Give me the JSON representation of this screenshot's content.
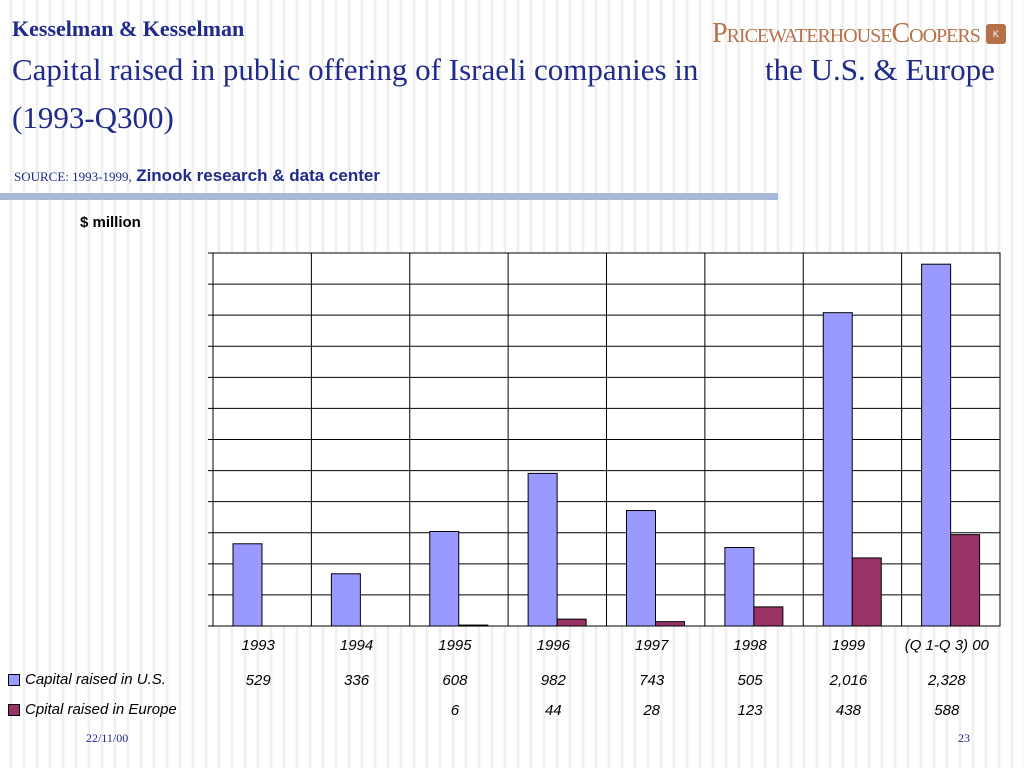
{
  "header": {
    "brand": "Kesselman & Kesselman",
    "logo_text": "PricewaterhouseCoopers",
    "title_part1": "Capital raised in public offering of Israeli companies in",
    "title_part2": "the U.S. & Europe",
    "title_line2": "(1993-Q300)",
    "source_prefix": "SOURCE: 1993-1999,",
    "source_name": "Zinook research & data center",
    "unit_label": "$ million"
  },
  "colors": {
    "us": "#9999ff",
    "europe": "#993366",
    "title": "#1f2a8a",
    "divider": "#a8b8d8"
  },
  "chart_data": {
    "type": "bar",
    "categories": [
      "1993",
      "1994",
      "1995",
      "1996",
      "1997",
      "1998",
      "1999",
      "(Q 1-Q 3) 00"
    ],
    "series": [
      {
        "name": "Capital raised in U.S.",
        "values": [
          529,
          336,
          608,
          982,
          743,
          505,
          2016,
          2328
        ],
        "labels": [
          "529",
          "336",
          "608",
          "982",
          "743",
          "505",
          "2,016",
          "2,328"
        ]
      },
      {
        "name": "Cpital raised in Europe",
        "values": [
          null,
          null,
          6,
          44,
          28,
          123,
          438,
          588
        ],
        "labels": [
          "",
          "",
          "6",
          "44",
          "28",
          "123",
          "438",
          "588"
        ]
      }
    ],
    "ylim": [
      0,
      2400
    ],
    "grid": true,
    "legend": "bottom-left"
  },
  "footer": {
    "date": "22/11/00",
    "page": "23"
  }
}
